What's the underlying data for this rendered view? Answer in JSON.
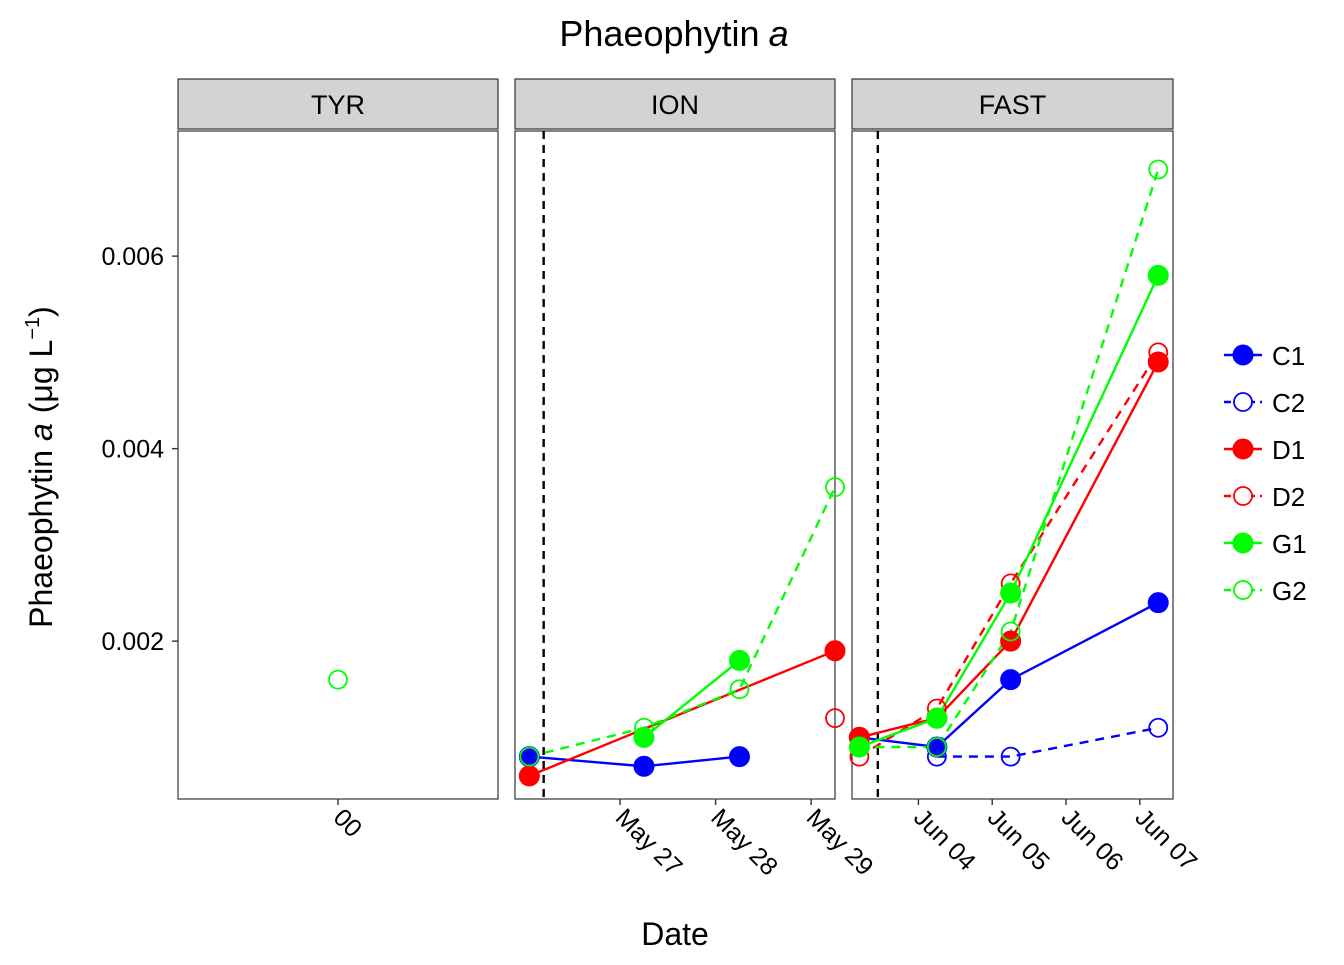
{
  "chart_data": {
    "type": "line",
    "title": "Phaeophytin",
    "title_italic": "a",
    "xlabel": "Date",
    "ylabel": {
      "prefix": "Phaeophytin ",
      "italic": "a",
      "unit": "(μg L",
      "superscript": "−1",
      "close": ")"
    },
    "ylim": [
      0.00036,
      0.0073
    ],
    "yticks": [
      {
        "value": 0.002,
        "label": "0.002"
      },
      {
        "value": 0.004,
        "label": "0.004"
      },
      {
        "value": 0.006,
        "label": "0.006"
      }
    ],
    "grid": false,
    "legend_position": "right",
    "series_styles": [
      {
        "name": "C1",
        "color": "#0000ff",
        "filled": true,
        "dashed": false
      },
      {
        "name": "C2",
        "color": "#0000ff",
        "filled": false,
        "dashed": true
      },
      {
        "name": "D1",
        "color": "#ff0000",
        "filled": true,
        "dashed": false
      },
      {
        "name": "D2",
        "color": "#ff0000",
        "filled": false,
        "dashed": true
      },
      {
        "name": "G1",
        "color": "#00ff00",
        "filled": true,
        "dashed": false
      },
      {
        "name": "G2",
        "color": "#00ff00",
        "filled": false,
        "dashed": true
      }
    ],
    "panels": [
      {
        "name": "TYR",
        "xlim": [
          -1,
          1
        ],
        "xticks": [
          {
            "value": 0,
            "label": "00"
          }
        ],
        "vline": null,
        "series": [
          {
            "name": "G2",
            "points": [
              [
                0,
                0.0016
              ]
            ]
          }
        ]
      },
      {
        "name": "ION",
        "xlim": [
          0.9,
          4.25
        ],
        "xticks": [
          {
            "value": 2,
            "label": "May 27"
          },
          {
            "value": 3,
            "label": "May 28"
          },
          {
            "value": 4,
            "label": "May 29"
          }
        ],
        "vline": 1.2,
        "series": [
          {
            "name": "C1",
            "points": [
              [
                1.05,
                0.0008
              ],
              [
                2.25,
                0.0007
              ],
              [
                3.25,
                0.0008
              ]
            ]
          },
          {
            "name": "D1",
            "points": [
              [
                1.05,
                0.0006
              ],
              [
                4.25,
                0.0019
              ]
            ]
          },
          {
            "name": "D2",
            "points": [
              [
                4.25,
                0.0012
              ]
            ]
          },
          {
            "name": "G1",
            "points": [
              [
                2.25,
                0.001
              ],
              [
                3.25,
                0.0018
              ]
            ]
          },
          {
            "name": "G2",
            "points": [
              [
                1.05,
                0.0008
              ],
              [
                2.25,
                0.0011
              ],
              [
                3.25,
                0.0015
              ],
              [
                4.25,
                0.0036
              ]
            ]
          }
        ]
      },
      {
        "name": "FAST",
        "xlim": [
          3.1,
          7.45
        ],
        "xticks": [
          {
            "value": 4,
            "label": "Jun 04"
          },
          {
            "value": 5,
            "label": "Jun 05"
          },
          {
            "value": 6,
            "label": "Jun 06"
          },
          {
            "value": 7,
            "label": "Jun 07"
          }
        ],
        "vline": 3.45,
        "series": [
          {
            "name": "C1",
            "points": [
              [
                3.2,
                0.001
              ],
              [
                4.25,
                0.0009
              ],
              [
                5.25,
                0.0016
              ],
              [
                7.25,
                0.0024
              ]
            ]
          },
          {
            "name": "C2",
            "points": [
              [
                4.25,
                0.0008
              ],
              [
                5.25,
                0.0008
              ],
              [
                7.25,
                0.0011
              ]
            ]
          },
          {
            "name": "D1",
            "points": [
              [
                3.2,
                0.001
              ],
              [
                4.25,
                0.0012
              ],
              [
                5.25,
                0.002
              ],
              [
                7.25,
                0.0049
              ]
            ]
          },
          {
            "name": "D2",
            "points": [
              [
                3.2,
                0.0008
              ],
              [
                4.25,
                0.0013
              ],
              [
                5.25,
                0.0026
              ],
              [
                7.25,
                0.005
              ]
            ]
          },
          {
            "name": "G1",
            "points": [
              [
                3.2,
                0.0009
              ],
              [
                4.25,
                0.0012
              ],
              [
                5.25,
                0.0025
              ],
              [
                7.25,
                0.0058
              ]
            ]
          },
          {
            "name": "G2",
            "points": [
              [
                3.2,
                0.0009
              ],
              [
                4.25,
                0.0009
              ],
              [
                5.25,
                0.0021
              ],
              [
                7.25,
                0.0069
              ]
            ]
          }
        ]
      }
    ]
  }
}
